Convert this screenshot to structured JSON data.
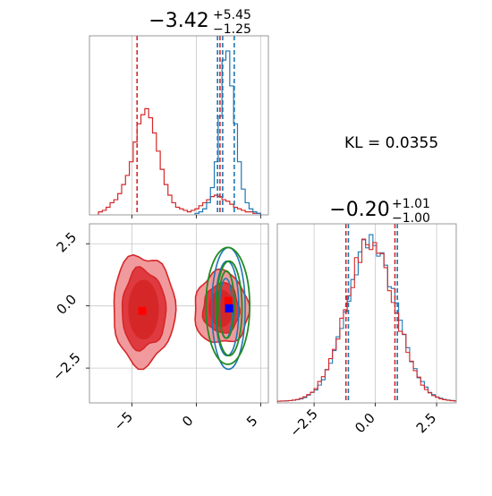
{
  "chart_data": [
    {
      "type": "histogram",
      "panel": "top-left",
      "title_value": "−3.42",
      "title_sup": "+5.45",
      "title_sub": "−1.25",
      "xlim": [
        -8.3,
        5.6
      ],
      "grid": true,
      "colors": {
        "red": "#d62728",
        "blue": "#1f77b4"
      },
      "series": [
        {
          "color": "#d62728",
          "bins": [
            -7.6,
            -7.3,
            -7.0,
            -6.7,
            -6.4,
            -6.1,
            -5.8,
            -5.5,
            -5.2,
            -4.9,
            -4.6,
            -4.3,
            -4.0,
            -3.7,
            -3.4,
            -3.1,
            -2.8,
            -2.5,
            -2.2,
            -1.9,
            -1.6,
            -1.3,
            -1.0,
            -0.7,
            -0.4,
            -0.1,
            0.2,
            0.5,
            0.8,
            1.1,
            1.4,
            1.7,
            2.0,
            2.3,
            2.6,
            2.9,
            3.2,
            3.5,
            3.8,
            4.1,
            4.4,
            4.7,
            5.0
          ],
          "counts": [
            0.02,
            0.03,
            0.05,
            0.08,
            0.1,
            0.14,
            0.2,
            0.26,
            0.35,
            0.48,
            0.6,
            0.66,
            0.7,
            0.64,
            0.54,
            0.42,
            0.3,
            0.2,
            0.13,
            0.08,
            0.05,
            0.04,
            0.03,
            0.02,
            0.03,
            0.04,
            0.06,
            0.08,
            0.1,
            0.12,
            0.13,
            0.12,
            0.1,
            0.09,
            0.07,
            0.05,
            0.04,
            0.03,
            0.02,
            0.02,
            0.01,
            0.01
          ]
        },
        {
          "color": "#1f77b4",
          "bins": [
            -0.1,
            0.2,
            0.5,
            0.8,
            1.1,
            1.4,
            1.7,
            2.0,
            2.3,
            2.6,
            2.9,
            3.2,
            3.5,
            3.8,
            4.1,
            4.4,
            4.7,
            5.0
          ],
          "counts": [
            0.01,
            0.02,
            0.04,
            0.08,
            0.18,
            0.35,
            0.65,
            1.02,
            1.08,
            0.85,
            0.6,
            0.35,
            0.17,
            0.08,
            0.04,
            0.02,
            0.01
          ]
        }
      ],
      "vlines": [
        {
          "x": -4.6,
          "color": "#d62728"
        },
        {
          "x": 1.84,
          "color": "#d62728"
        },
        {
          "x": 1.65,
          "color": "#1f77b4"
        },
        {
          "x": 2.05,
          "color": "#1f77b4"
        },
        {
          "x": 2.95,
          "color": "#1f77b4"
        }
      ]
    },
    {
      "type": "contour",
      "panel": "bottom-left",
      "xlim": [
        -8.3,
        5.6
      ],
      "ylim": [
        -3.9,
        3.3
      ],
      "xticks": [
        -5,
        0,
        5
      ],
      "xtick_labels": [
        "−5",
        "0",
        "5"
      ],
      "yticks": [
        2.5,
        0.0,
        -2.5
      ],
      "ytick_labels": [
        "2.5",
        "0.0",
        "−2.5"
      ],
      "grid": true,
      "red_modes": [
        {
          "cx": -4.1,
          "cy": -0.15,
          "levels": [
            [
              2.4,
              2.2
            ],
            [
              1.7,
              1.6
            ]
          ]
        },
        {
          "cx": 1.95,
          "cy": -0.1,
          "levels": [
            [
              2.1,
              1.45
            ],
            [
              1.4,
              1.0
            ]
          ]
        }
      ],
      "blue_ellipses": [
        {
          "cx": 2.5,
          "cy": -0.1,
          "rx": 1.3,
          "ry": 2.45
        },
        {
          "cx": 2.4,
          "cy": -0.1,
          "rx": 0.9,
          "ry": 1.9
        },
        {
          "cx": 2.3,
          "cy": -0.1,
          "rx": 0.5,
          "ry": 1.2
        }
      ],
      "green_ellipses": [
        {
          "cx": 2.45,
          "cy": 0.0,
          "rx": 1.7,
          "ry": 2.35
        },
        {
          "cx": 2.55,
          "cy": -0.1,
          "rx": 1.0,
          "ry": 1.9
        },
        {
          "cx": 2.35,
          "cy": 0.05,
          "rx": 0.6,
          "ry": 1.35
        }
      ],
      "markers": [
        {
          "x": -4.2,
          "y": -0.2,
          "color": "#ff0000"
        },
        {
          "x": 2.5,
          "y": 0.2,
          "color": "#ff0000"
        },
        {
          "x": 2.55,
          "y": -0.1,
          "color": "#0000ff"
        }
      ]
    },
    {
      "type": "histogram",
      "panel": "bottom-right",
      "title_value": "−0.20",
      "title_sup": "+1.01",
      "title_sub": "−1.00",
      "xlim": [
        -4.0,
        3.3
      ],
      "xticks": [
        -2.5,
        0.0,
        2.5
      ],
      "xtick_labels": [
        "−2.5",
        "0.0",
        "2.5"
      ],
      "grid": true,
      "mean": -0.2,
      "sigma": 1.0,
      "peak": 1.0,
      "vlines": [
        {
          "x": -1.2,
          "color": "#d62728"
        },
        {
          "x": -1.1,
          "color": "#1f77b4"
        },
        {
          "x": 0.8,
          "color": "#d62728"
        },
        {
          "x": 0.9,
          "color": "#1f77b4"
        }
      ]
    }
  ],
  "annotation": {
    "kl_text": "KL = 0.0355"
  }
}
